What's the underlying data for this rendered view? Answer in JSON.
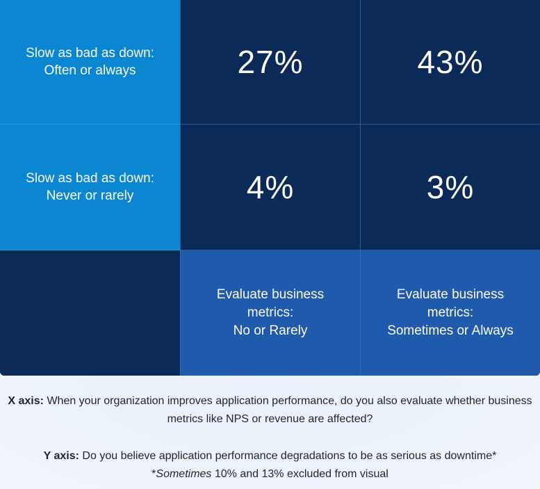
{
  "chart_data": {
    "type": "table",
    "title": "",
    "row_labels": [
      [
        "Slow as bad as down:",
        "Often or always"
      ],
      [
        "Slow as bad as down:",
        "Never or rarely"
      ]
    ],
    "column_labels": [
      [
        "Evaluate business",
        "metrics:",
        "No or Rarely"
      ],
      [
        "Evaluate business",
        "metrics:",
        "Sometimes or Always"
      ]
    ],
    "values": [
      [
        "27%",
        "43%"
      ],
      [
        "4%",
        "3%"
      ]
    ],
    "numeric_values": [
      [
        27,
        43
      ],
      [
        4,
        3
      ]
    ],
    "unit": "%"
  },
  "notes": {
    "x_label": "X axis:",
    "x_text": "When your organization improves application performance, do you also evaluate whether business metrics like NPS or revenue are affected?",
    "y_label": "Y axis:",
    "y_text": "Do you believe application performance degradations to be as serious as downtime*",
    "footnote_prefix": "*",
    "footnote_italic": "Sometimes",
    "footnote_text": " 10% and 13% excluded from visual"
  },
  "colors": {
    "row_label_bg": "#0b86d0",
    "value_bg": "#0c2a57",
    "column_label_bg": "#1f5aad",
    "notes_bg": "#edf3fa"
  }
}
